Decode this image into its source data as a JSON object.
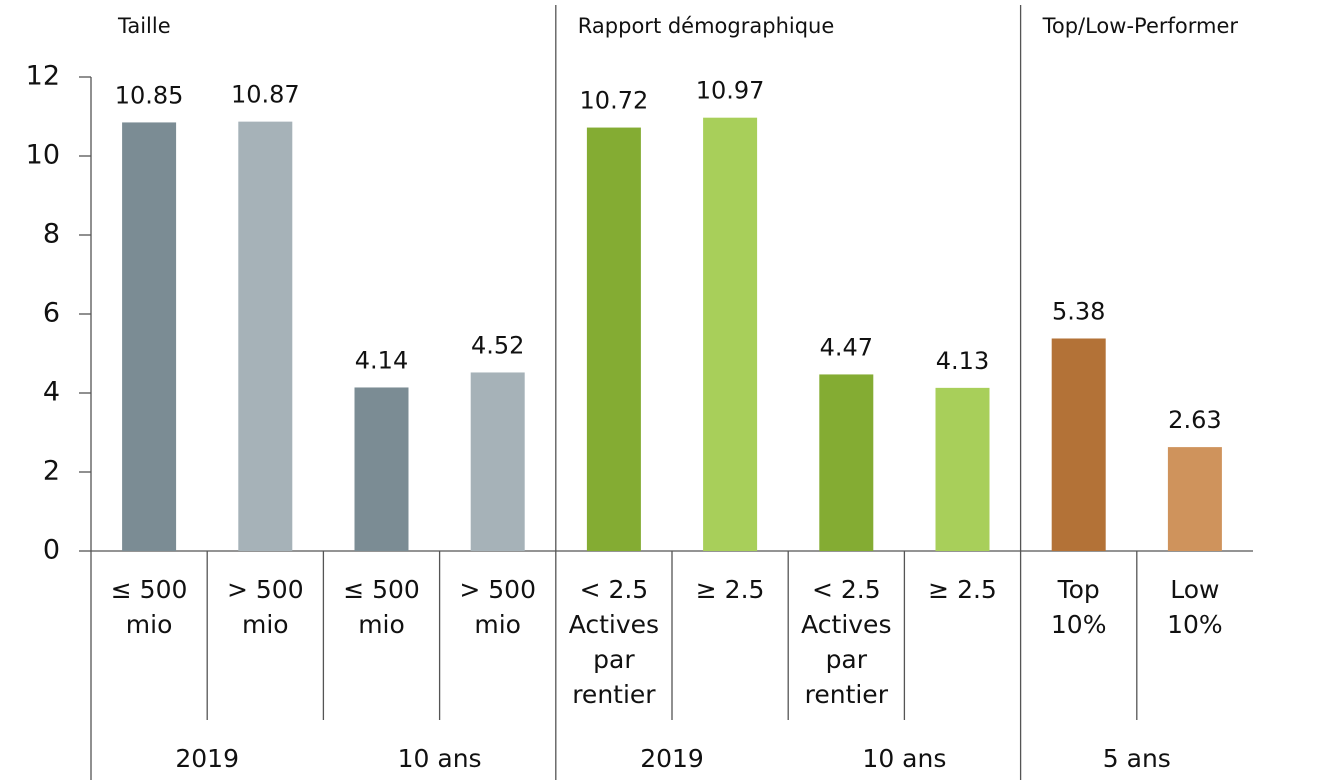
{
  "chart_data": {
    "type": "bar",
    "groups": [
      "Taille",
      "Rapport démographique",
      "Top/Low-Performer"
    ],
    "periods": [
      "2019",
      "10 ans",
      "2019",
      "10 ans",
      "5 ans"
    ],
    "categories": [
      "≤ 500 mio",
      "> 500 mio",
      "≤ 500 mio",
      "> 500 mio",
      "< 2.5 Actives par rentier",
      "≥ 2.5",
      "< 2.5 Actives par rentier",
      "≥ 2.5",
      "Top 10%",
      "Low 10%"
    ],
    "values": [
      10.85,
      10.87,
      4.14,
      4.52,
      10.72,
      10.97,
      4.47,
      4.13,
      5.38,
      2.63
    ],
    "colors": [
      "#7b8c94",
      "#a6b2b8",
      "#7b8c94",
      "#a6b2b8",
      "#84ac33",
      "#a8cf5a",
      "#84ac33",
      "#a8cf5a",
      "#b37237",
      "#cf935c"
    ],
    "ylim": [
      0,
      12
    ],
    "yticks": [
      0,
      2,
      4,
      6,
      8,
      10,
      12
    ]
  }
}
